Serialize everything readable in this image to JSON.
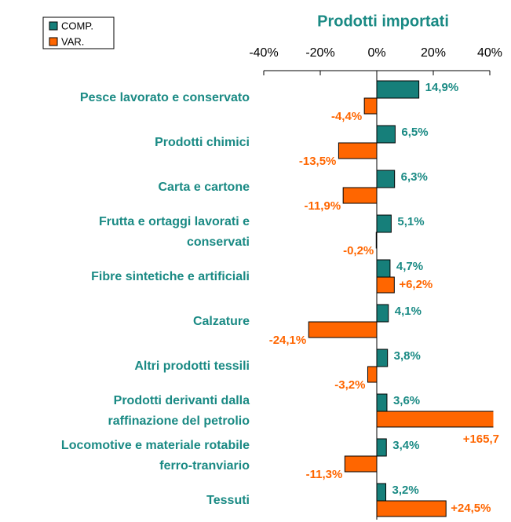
{
  "chart_data": {
    "type": "hbar",
    "title": "Prodotti importati",
    "categories": [
      "Pesce lavorato e conservato",
      "Prodotti chimici",
      "Carta e cartone",
      "Frutta e ortaggi lavorati e\nconservati",
      "Fibre sintetiche e artificiali",
      "Calzature",
      "Altri prodotti tessili",
      "Prodotti derivanti dalla\nraffinazione del petrolio",
      "Locomotive e materiale rotabile\nferro-tranviario",
      "Tessuti"
    ],
    "series": [
      {
        "name": "COMP.",
        "color": "#167f7a",
        "values": [
          14.9,
          6.5,
          6.3,
          5.1,
          4.7,
          4.1,
          3.8,
          3.6,
          3.4,
          3.2
        ],
        "value_labels": [
          "14,9%",
          "6,5%",
          "6,3%",
          "5,1%",
          "4,7%",
          "4,1%",
          "3,8%",
          "3,6%",
          "3,4%",
          "3,2%"
        ]
      },
      {
        "name": "VAR.",
        "color": "#ff6600",
        "values": [
          -4.4,
          -13.5,
          -11.9,
          -0.2,
          6.2,
          -24.1,
          -3.2,
          165.7,
          -11.3,
          24.5
        ],
        "value_labels": [
          "-4,4%",
          "-13,5%",
          "-11,9%",
          "-0,2%",
          "+6,2%",
          "-24,1%",
          "-3,2%",
          "+165,7",
          "-11,3%",
          "+24,5%"
        ]
      }
    ],
    "xlim": [
      -40,
      40
    ],
    "xticks": [
      {
        "value": -40,
        "label": "-40%"
      },
      {
        "value": -20,
        "label": "-20%"
      },
      {
        "value": 0,
        "label": "0%"
      },
      {
        "value": 20,
        "label": "20%"
      },
      {
        "value": 40,
        "label": "40%"
      }
    ]
  }
}
